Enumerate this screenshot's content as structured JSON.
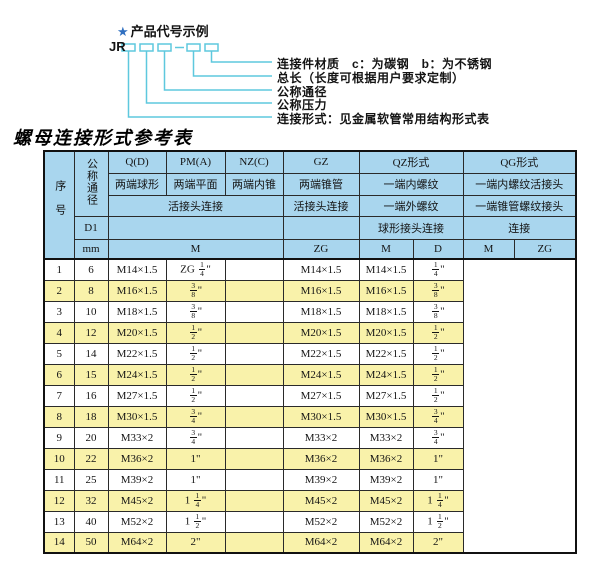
{
  "diagram": {
    "star_icon": "★",
    "example_title": "产品代号示例",
    "code_prefix": "JR",
    "callouts": [
      "连接件材质　c：为碳钢　b：为不锈钢",
      "总长（长度可根据用户要求定制）",
      "公称通径",
      "公称压力",
      "连接形式：见金属软管常用结构形式表"
    ]
  },
  "title": "螺母连接形式参考表",
  "table": {
    "header": {
      "seq": "序号",
      "dn": "公称通径",
      "q": "Q(D)",
      "pm": "PM(A)",
      "nz": "NZ(C)",
      "gz": "GZ",
      "qz": "QZ形式",
      "qg": "QG形式",
      "q_desc": "两端球形",
      "pm_desc": "两端平面",
      "nz_desc": "两端内锥",
      "gz_desc": "两端锥管",
      "qz_desc1": "一端内螺纹",
      "qg_desc1": "一端内螺纹活接头",
      "union": "活接头连接",
      "gz_union": "活接头连接",
      "qz_desc2": "一端外螺纹",
      "qg_desc2": "一端锥管螺纹接头",
      "d1": "D1",
      "qz_desc3": "球形接头连接",
      "qg_desc3": "连接",
      "mm": "mm",
      "unit_m": "M",
      "unit_zg": "ZG",
      "unit_qz_m": "M",
      "unit_qz_d": "D",
      "unit_qg_m": "M",
      "unit_qg_zg": "ZG"
    },
    "rows": [
      [
        "1",
        "6",
        "M14×1.5",
        "ZG 1/4\"",
        "",
        "M14×1.5",
        "M14×1.5",
        "1/4\""
      ],
      [
        "2",
        "8",
        "M16×1.5",
        "3/8\"",
        "",
        "M16×1.5",
        "M16×1.5",
        "3/8\""
      ],
      [
        "3",
        "10",
        "M18×1.5",
        "3/8\"",
        "",
        "M18×1.5",
        "M18×1.5",
        "3/8\""
      ],
      [
        "4",
        "12",
        "M20×1.5",
        "1/2\"",
        "",
        "M20×1.5",
        "M20×1.5",
        "1/2\""
      ],
      [
        "5",
        "14",
        "M22×1.5",
        "1/2\"",
        "",
        "M22×1.5",
        "M22×1.5",
        "1/2\""
      ],
      [
        "6",
        "15",
        "M24×1.5",
        "1/2\"",
        "",
        "M24×1.5",
        "M24×1.5",
        "1/2\""
      ],
      [
        "7",
        "16",
        "M27×1.5",
        "1/2\"",
        "",
        "M27×1.5",
        "M27×1.5",
        "1/2\""
      ],
      [
        "8",
        "18",
        "M30×1.5",
        "3/4\"",
        "",
        "M30×1.5",
        "M30×1.5",
        "3/4\""
      ],
      [
        "9",
        "20",
        "M33×2",
        "3/4\"",
        "",
        "M33×2",
        "M33×2",
        "3/4\""
      ],
      [
        "10",
        "22",
        "M36×2",
        "1\"",
        "",
        "M36×2",
        "M36×2",
        "1\""
      ],
      [
        "11",
        "25",
        "M39×2",
        "1\"",
        "",
        "M39×2",
        "M39×2",
        "1\""
      ],
      [
        "12",
        "32",
        "M45×2",
        "1 1/4\"",
        "",
        "M45×2",
        "M45×2",
        "1 1/4\""
      ],
      [
        "13",
        "40",
        "M52×2",
        "1 1/2\"",
        "",
        "M52×2",
        "M52×2",
        "1 1/2\""
      ],
      [
        "14",
        "50",
        "M64×2",
        "2\"",
        "",
        "M64×2",
        "M64×2",
        "2\""
      ]
    ]
  },
  "colors": {
    "header_bg": "#a9d6ee",
    "row_alt_bg": "#f9f2aa",
    "callout_line": "#5ec8de",
    "star_blue": "#2f6fc0",
    "border": "#111111"
  }
}
